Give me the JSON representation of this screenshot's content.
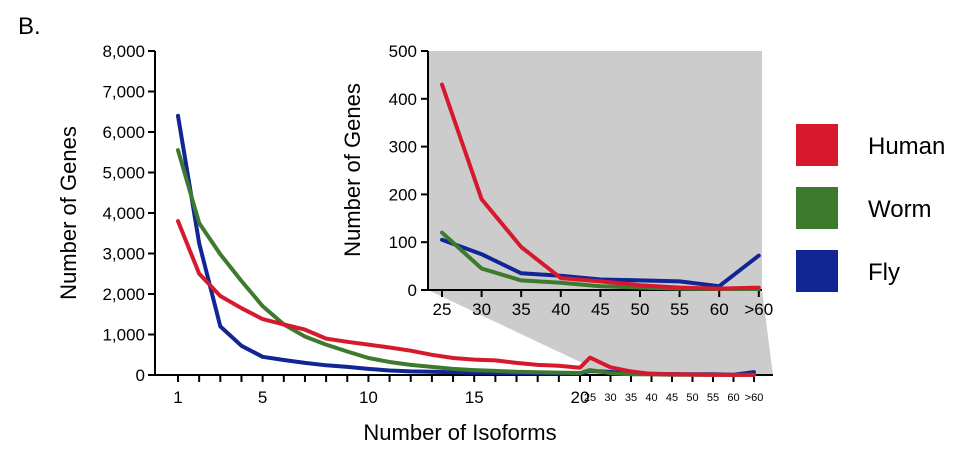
{
  "panel_label": "B.",
  "colors": {
    "human": "#d7192e",
    "worm": "#3d7a2e",
    "fly": "#122594",
    "zoom_fill": "#cccccc"
  },
  "legend": [
    {
      "name": "Human",
      "color": "#d7192e"
    },
    {
      "name": "Worm",
      "color": "#3d7a2e"
    },
    {
      "name": "Fly",
      "color": "#122594"
    }
  ],
  "chart_data": [
    {
      "type": "line",
      "xlabel": "Number of Isoforms",
      "ylabel": "Number of Genes",
      "ylim": [
        0,
        8000
      ],
      "y_ticks": [
        "0",
        "1,000",
        "2,000",
        "3,000",
        "4,000",
        "5,000",
        "6,000",
        "7,000",
        "8,000"
      ],
      "x_ticks_main": [
        "1",
        "5",
        "10",
        "15",
        "20"
      ],
      "x_ticks_tail": [
        "25",
        "30",
        "35",
        "40",
        "45",
        "50",
        "55",
        "60",
        ">60"
      ],
      "x": [
        1,
        2,
        3,
        4,
        5,
        6,
        7,
        8,
        9,
        10,
        11,
        12,
        13,
        14,
        15,
        16,
        17,
        18,
        19,
        20,
        "25",
        "30",
        "35",
        "40",
        "45",
        "50",
        "55",
        "60",
        ">60"
      ],
      "series": [
        {
          "name": "Human",
          "values": [
            3800,
            2500,
            1950,
            1650,
            1380,
            1250,
            1120,
            900,
            820,
            750,
            680,
            600,
            500,
            420,
            380,
            360,
            300,
            250,
            230,
            180,
            430,
            190,
            90,
            25,
            18,
            10,
            5,
            3,
            5
          ]
        },
        {
          "name": "Worm",
          "values": [
            5550,
            3750,
            2980,
            2320,
            1700,
            1250,
            950,
            750,
            580,
            420,
            320,
            250,
            200,
            150,
            120,
            100,
            80,
            70,
            60,
            50,
            120,
            45,
            20,
            15,
            8,
            5,
            3,
            2,
            2
          ]
        },
        {
          "name": "Fly",
          "values": [
            6400,
            3250,
            1200,
            720,
            450,
            370,
            300,
            240,
            200,
            150,
            110,
            90,
            80,
            70,
            60,
            50,
            45,
            40,
            35,
            30,
            105,
            75,
            35,
            30,
            22,
            20,
            18,
            8,
            72
          ]
        }
      ]
    },
    {
      "type": "line",
      "ylabel": "Number of Genes",
      "ylim": [
        0,
        500
      ],
      "y_ticks": [
        "0",
        "100",
        "200",
        "300",
        "400",
        "500"
      ],
      "categories": [
        "25",
        "30",
        "35",
        "40",
        "45",
        "50",
        "55",
        "60",
        ">60"
      ],
      "series": [
        {
          "name": "Human",
          "values": [
            430,
            190,
            90,
            25,
            18,
            10,
            5,
            3,
            5
          ]
        },
        {
          "name": "Worm",
          "values": [
            120,
            45,
            20,
            15,
            8,
            5,
            3,
            2,
            2
          ]
        },
        {
          "name": "Fly",
          "values": [
            105,
            75,
            35,
            30,
            22,
            20,
            18,
            8,
            72
          ]
        }
      ]
    }
  ]
}
